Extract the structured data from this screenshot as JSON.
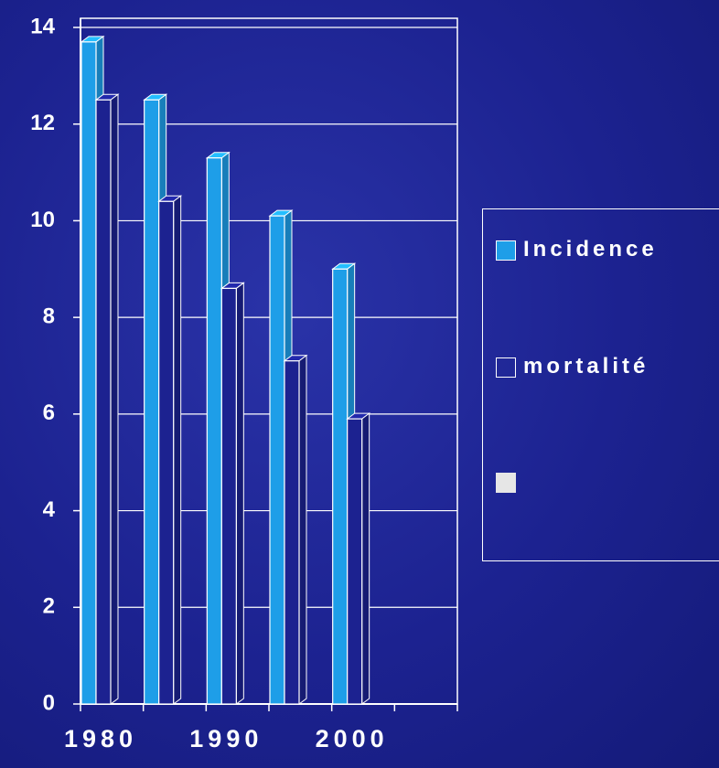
{
  "chart_data": {
    "type": "bar3d",
    "categories": [
      "1980",
      null,
      "1990",
      null,
      "2000"
    ],
    "series": [
      {
        "name": "Incidence",
        "color": "#1e9ee8",
        "values": [
          13.7,
          12.5,
          11.3,
          10.1,
          9.0
        ]
      },
      {
        "name": "mortalité",
        "color": "#1c2290",
        "values": [
          12.5,
          10.4,
          8.6,
          7.1,
          5.9
        ]
      }
    ],
    "ylim": [
      0,
      14
    ],
    "yticks": [
      0,
      2,
      4,
      6,
      8,
      10,
      12,
      14
    ],
    "grid": true
  }
}
